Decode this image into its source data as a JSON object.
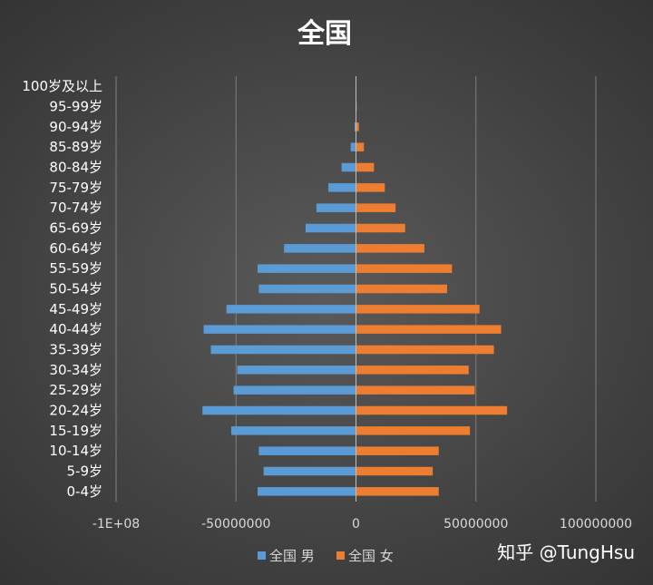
{
  "chart_data": {
    "type": "bar",
    "orientation": "horizontal",
    "title": "全国",
    "categories": [
      "0-4岁",
      "5-9岁",
      "10-14岁",
      "15-19岁",
      "20-24岁",
      "25-29岁",
      "30-34岁",
      "35-39岁",
      "40-44岁",
      "45-49岁",
      "50-54岁",
      "55-59岁",
      "60-64岁",
      "65-69岁",
      "70-74岁",
      "75-79岁",
      "80-84岁",
      "85-89岁",
      "90-94岁",
      "95-99岁",
      "100岁及以上"
    ],
    "series": [
      {
        "name": "全国 男",
        "color": "#5B9BD5",
        "values": [
          -41000000,
          -38500000,
          -40500000,
          -52000000,
          -64000000,
          -51000000,
          -49500000,
          -60500000,
          -63500000,
          -54000000,
          -40500000,
          -41000000,
          -30000000,
          -21000000,
          -16500000,
          -11500000,
          -6000000,
          -2200000,
          -600000,
          -100000,
          -10000
        ]
      },
      {
        "name": "全国 女",
        "color": "#ED7D31",
        "values": [
          34500000,
          32000000,
          34500000,
          47500000,
          63000000,
          49500000,
          47000000,
          57500000,
          60500000,
          51500000,
          38000000,
          40000000,
          28500000,
          20500000,
          16500000,
          12000000,
          7500000,
          3300000,
          1200000,
          300000,
          40000
        ]
      }
    ],
    "xlim": [
      -100000000,
      100000000
    ],
    "xticks": [
      -100000000,
      -50000000,
      0,
      50000000,
      100000000
    ],
    "xtick_labels": [
      "-1E+08",
      "-50000000",
      "0",
      "50000000",
      "100000000"
    ],
    "grid": "vertical",
    "legend": "bottom"
  },
  "watermark": "知乎 @TungHsu"
}
